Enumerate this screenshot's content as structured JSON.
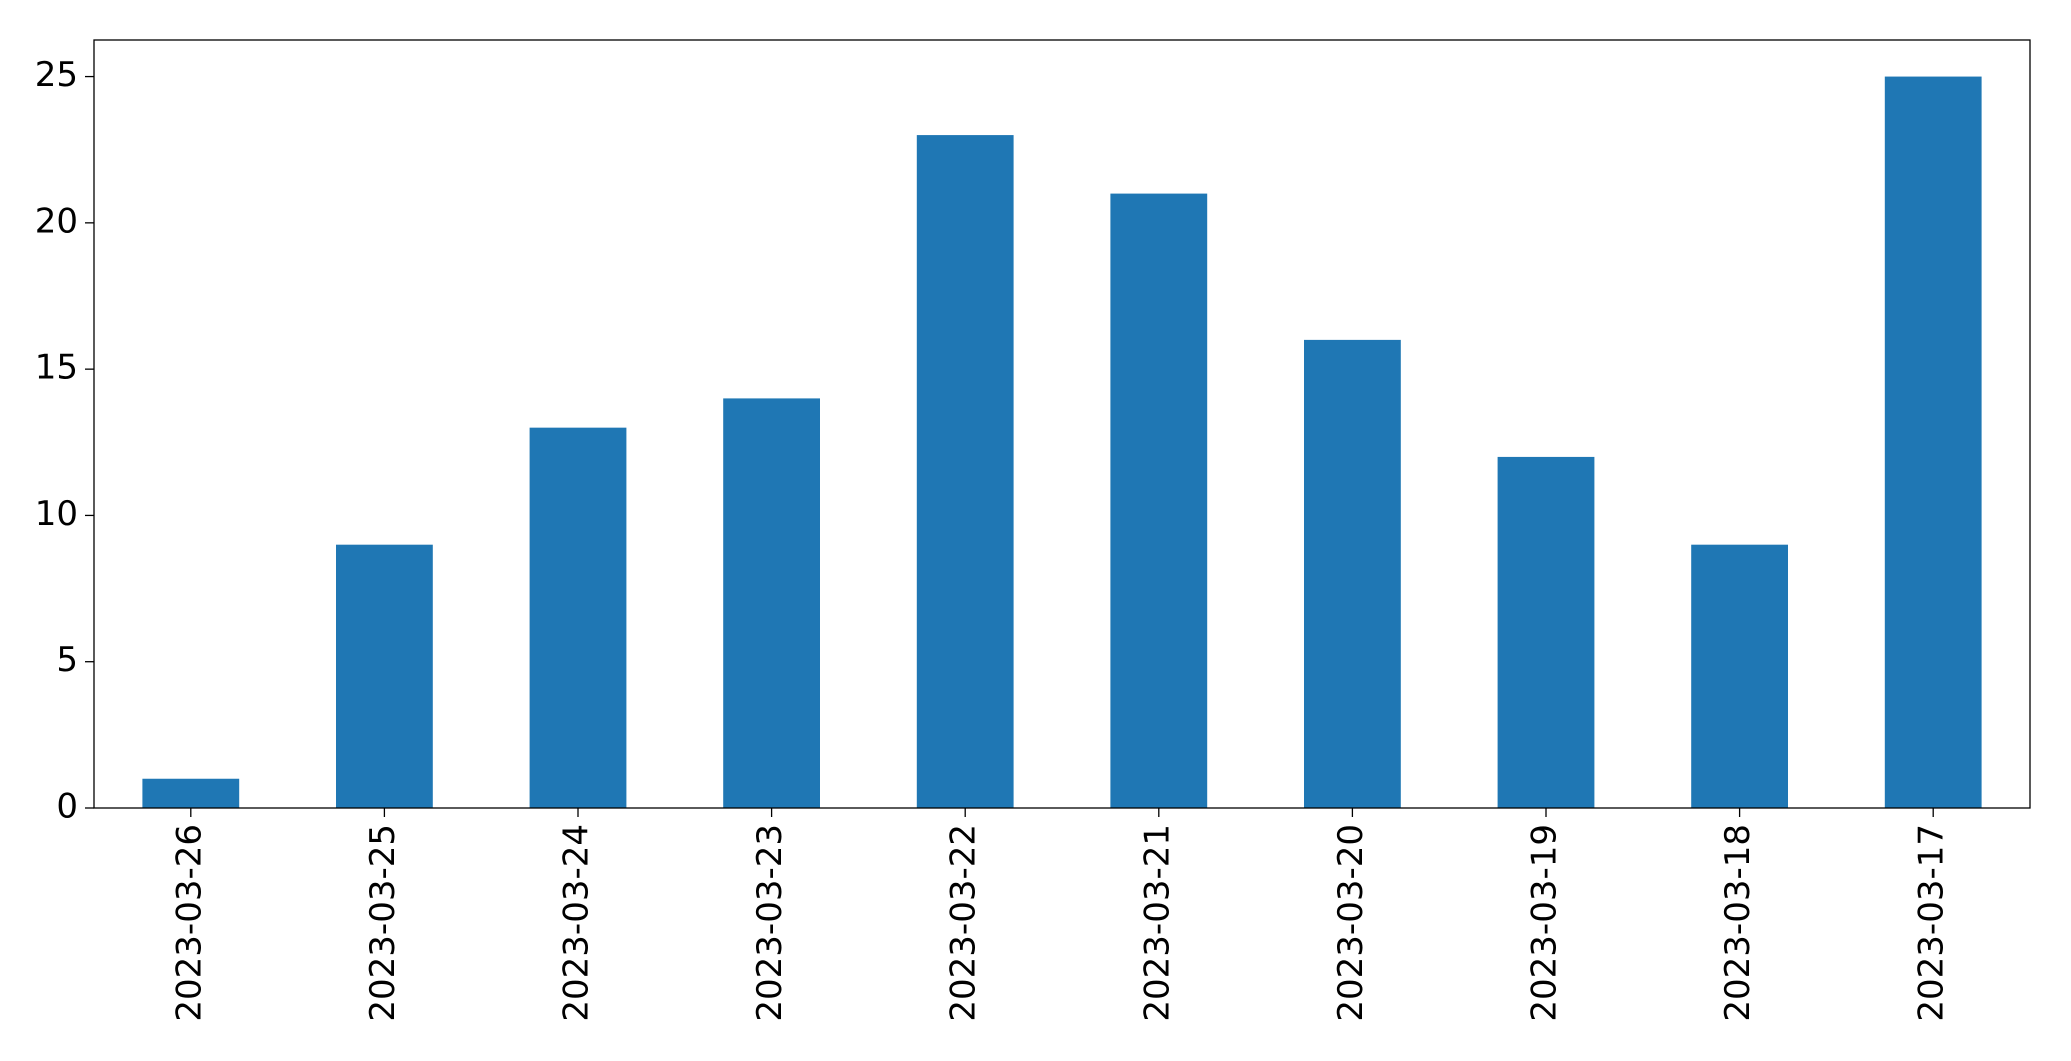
{
  "chart_data": {
    "type": "bar",
    "categories": [
      "2023-03-26",
      "2023-03-25",
      "2023-03-24",
      "2023-03-23",
      "2023-03-22",
      "2023-03-21",
      "2023-03-20",
      "2023-03-19",
      "2023-03-18",
      "2023-03-17"
    ],
    "values": [
      1,
      9,
      13,
      14,
      23,
      21,
      16,
      12,
      9,
      25
    ],
    "color": "#1f77b4",
    "ylim": [
      0,
      26.25
    ],
    "yticks": [
      0,
      5,
      10,
      15,
      20,
      25
    ],
    "grid": false
  }
}
